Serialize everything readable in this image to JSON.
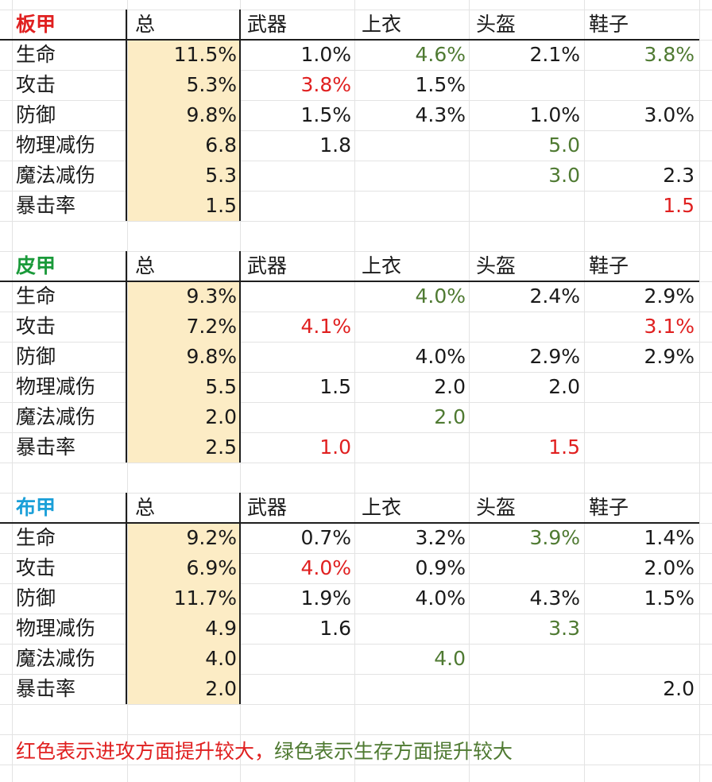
{
  "header_labels": [
    "总",
    "武器",
    "上衣",
    "头盔",
    "鞋子"
  ],
  "sections": [
    {
      "title": "板甲",
      "title_color": "#e02020",
      "rows": [
        {
          "label": "生命",
          "total": "11.5%",
          "cells": [
            {
              "v": "1.0%",
              "c": "black"
            },
            {
              "v": "4.6%",
              "c": "green"
            },
            {
              "v": "2.1%",
              "c": "black"
            },
            {
              "v": "3.8%",
              "c": "green"
            }
          ]
        },
        {
          "label": "攻击",
          "total": "5.3%",
          "cells": [
            {
              "v": "3.8%",
              "c": "red"
            },
            {
              "v": "1.5%",
              "c": "black"
            },
            {
              "v": "",
              "c": "black"
            },
            {
              "v": "",
              "c": "black"
            }
          ]
        },
        {
          "label": "防御",
          "total": "9.8%",
          "cells": [
            {
              "v": "1.5%",
              "c": "black"
            },
            {
              "v": "4.3%",
              "c": "black"
            },
            {
              "v": "1.0%",
              "c": "black"
            },
            {
              "v": "3.0%",
              "c": "black"
            }
          ]
        },
        {
          "label": "物理减伤",
          "total": "6.8",
          "cells": [
            {
              "v": "1.8",
              "c": "black"
            },
            {
              "v": "",
              "c": "black"
            },
            {
              "v": "5.0",
              "c": "green"
            },
            {
              "v": "",
              "c": "black"
            }
          ]
        },
        {
          "label": "魔法减伤",
          "total": "5.3",
          "cells": [
            {
              "v": "",
              "c": "black"
            },
            {
              "v": "",
              "c": "black"
            },
            {
              "v": "3.0",
              "c": "green"
            },
            {
              "v": "2.3",
              "c": "black"
            }
          ]
        },
        {
          "label": "暴击率",
          "total": "1.5",
          "cells": [
            {
              "v": "",
              "c": "black"
            },
            {
              "v": "",
              "c": "black"
            },
            {
              "v": "",
              "c": "black"
            },
            {
              "v": "1.5",
              "c": "red"
            }
          ]
        }
      ]
    },
    {
      "title": "皮甲",
      "title_color": "#1a9a3a",
      "rows": [
        {
          "label": "生命",
          "total": "9.3%",
          "cells": [
            {
              "v": "",
              "c": "black"
            },
            {
              "v": "4.0%",
              "c": "green"
            },
            {
              "v": "2.4%",
              "c": "black"
            },
            {
              "v": "2.9%",
              "c": "black"
            }
          ]
        },
        {
          "label": "攻击",
          "total": "7.2%",
          "cells": [
            {
              "v": "4.1%",
              "c": "red"
            },
            {
              "v": "",
              "c": "black"
            },
            {
              "v": "",
              "c": "black"
            },
            {
              "v": "3.1%",
              "c": "red"
            }
          ]
        },
        {
          "label": "防御",
          "total": "9.8%",
          "cells": [
            {
              "v": "",
              "c": "black"
            },
            {
              "v": "4.0%",
              "c": "black"
            },
            {
              "v": "2.9%",
              "c": "black"
            },
            {
              "v": "2.9%",
              "c": "black"
            }
          ]
        },
        {
          "label": "物理减伤",
          "total": "5.5",
          "cells": [
            {
              "v": "1.5",
              "c": "black"
            },
            {
              "v": "2.0",
              "c": "black"
            },
            {
              "v": "2.0",
              "c": "black"
            },
            {
              "v": "",
              "c": "black"
            }
          ]
        },
        {
          "label": "魔法减伤",
          "total": "2.0",
          "cells": [
            {
              "v": "",
              "c": "black"
            },
            {
              "v": "2.0",
              "c": "green"
            },
            {
              "v": "",
              "c": "black"
            },
            {
              "v": "",
              "c": "black"
            }
          ]
        },
        {
          "label": "暴击率",
          "total": "2.5",
          "cells": [
            {
              "v": "1.0",
              "c": "red"
            },
            {
              "v": "",
              "c": "black"
            },
            {
              "v": "1.5",
              "c": "red"
            },
            {
              "v": "",
              "c": "black"
            }
          ]
        }
      ]
    },
    {
      "title": "布甲",
      "title_color": "#1a9fd8",
      "rows": [
        {
          "label": "生命",
          "total": "9.2%",
          "cells": [
            {
              "v": "0.7%",
              "c": "black"
            },
            {
              "v": "3.2%",
              "c": "black"
            },
            {
              "v": "3.9%",
              "c": "green"
            },
            {
              "v": "1.4%",
              "c": "black"
            }
          ]
        },
        {
          "label": "攻击",
          "total": "6.9%",
          "cells": [
            {
              "v": "4.0%",
              "c": "red"
            },
            {
              "v": "0.9%",
              "c": "black"
            },
            {
              "v": "",
              "c": "black"
            },
            {
              "v": "2.0%",
              "c": "black"
            }
          ]
        },
        {
          "label": "防御",
          "total": "11.7%",
          "cells": [
            {
              "v": "1.9%",
              "c": "black"
            },
            {
              "v": "4.0%",
              "c": "black"
            },
            {
              "v": "4.3%",
              "c": "black"
            },
            {
              "v": "1.5%",
              "c": "black"
            }
          ]
        },
        {
          "label": "物理减伤",
          "total": "4.9",
          "cells": [
            {
              "v": "1.6",
              "c": "black"
            },
            {
              "v": "",
              "c": "black"
            },
            {
              "v": "3.3",
              "c": "green"
            },
            {
              "v": "",
              "c": "black"
            }
          ]
        },
        {
          "label": "魔法减伤",
          "total": "4.0",
          "cells": [
            {
              "v": "",
              "c": "black"
            },
            {
              "v": "4.0",
              "c": "green"
            },
            {
              "v": "",
              "c": "black"
            },
            {
              "v": "",
              "c": "black"
            }
          ]
        },
        {
          "label": "暴击率",
          "total": "2.0",
          "cells": [
            {
              "v": "",
              "c": "black"
            },
            {
              "v": "",
              "c": "black"
            },
            {
              "v": "",
              "c": "black"
            },
            {
              "v": "2.0",
              "c": "black"
            }
          ]
        }
      ]
    }
  ],
  "note": {
    "red_part": "红色表示进攻方面提升较大，",
    "green_part": "绿色表示生存方面提升较大"
  },
  "colors": {
    "black": "#1a1a1a",
    "red": "#e02020",
    "green": "#4f7a32",
    "highlight": "#fcecc5"
  }
}
